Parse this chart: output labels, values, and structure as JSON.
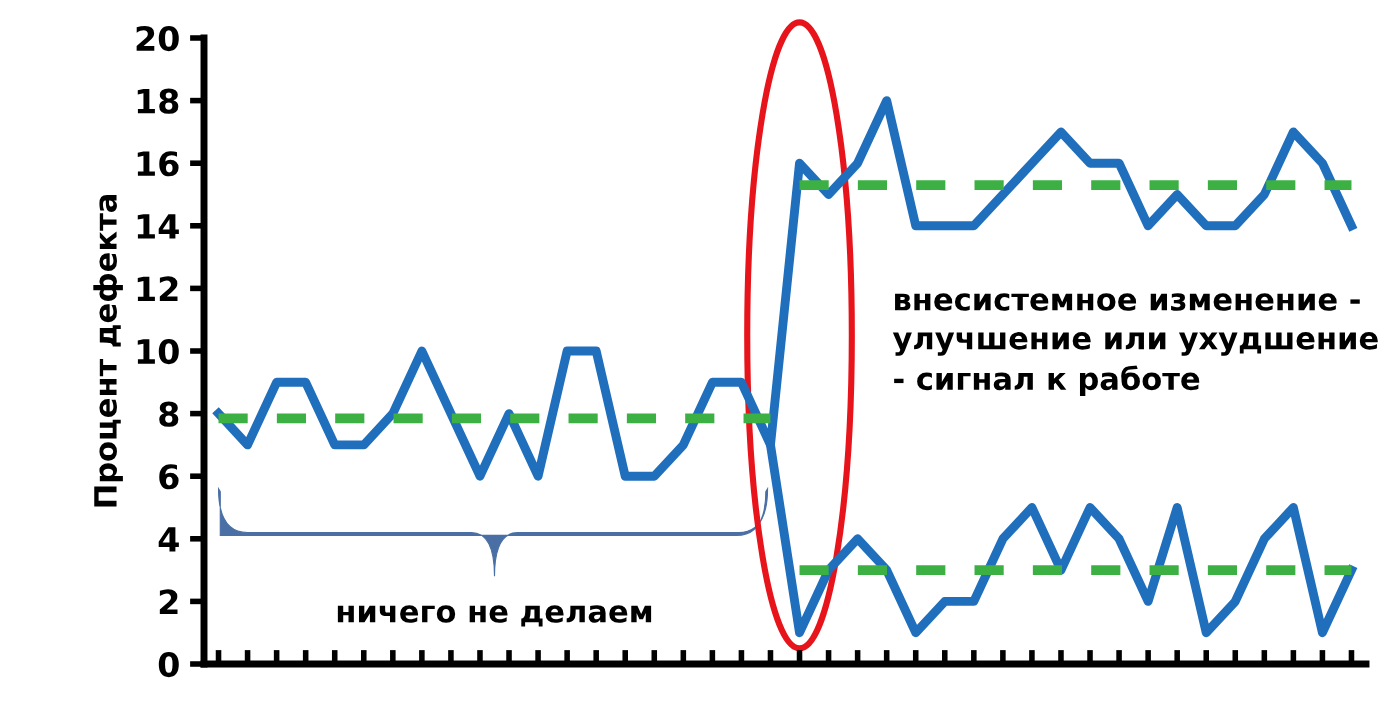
{
  "chart_data": {
    "type": "line",
    "ylabel": "Процент дефекта",
    "categories": [
      null,
      null,
      null,
      null,
      null,
      null,
      null,
      null,
      null,
      null,
      null,
      null,
      null,
      null,
      null,
      null,
      null,
      null,
      null,
      null,
      null,
      null,
      null,
      null,
      null,
      null,
      null,
      null,
      null,
      null,
      null,
      null,
      null,
      null,
      null,
      null,
      null,
      null,
      null,
      null
    ],
    "series": [
      {
        "color": "#1f6fbd",
        "line_style": "solid",
        "values": [
          8,
          7,
          9,
          9,
          7,
          7,
          8,
          10,
          8,
          6,
          8,
          6,
          10,
          10,
          6,
          6,
          7,
          9,
          9,
          7,
          16,
          15,
          16,
          18,
          14,
          14,
          14,
          15,
          16,
          17,
          16,
          16,
          14,
          15,
          14,
          14,
          15,
          17,
          16,
          14
        ]
      },
      {
        "color": "#1f6fbd",
        "line_style": "solid",
        "values": [
          null,
          null,
          null,
          null,
          null,
          null,
          null,
          null,
          null,
          null,
          null,
          null,
          null,
          null,
          null,
          null,
          null,
          null,
          null,
          7,
          1,
          3,
          4,
          3,
          1,
          2,
          2,
          4,
          5,
          3,
          5,
          4,
          2,
          5,
          1,
          2,
          4,
          5,
          1,
          3
        ]
      },
      {
        "color": "#3cb043",
        "line_style": "dashed",
        "values": [
          7.85,
          7.85,
          7.85,
          7.85,
          7.85,
          7.85,
          7.85,
          7.85,
          7.85,
          7.85,
          7.85,
          7.85,
          7.85,
          7.85,
          7.85,
          7.85,
          7.85,
          7.85,
          7.85,
          7.85,
          null,
          null,
          null,
          null,
          null,
          null,
          null,
          null,
          null,
          null,
          null,
          null,
          null,
          null,
          null,
          null,
          null,
          null,
          null,
          null
        ]
      },
      {
        "color": "#3cb043",
        "line_style": "dashed",
        "values": [
          null,
          null,
          null,
          null,
          null,
          null,
          null,
          null,
          null,
          null,
          null,
          null,
          null,
          null,
          null,
          null,
          null,
          null,
          null,
          null,
          15.3,
          15.3,
          15.3,
          15.3,
          15.3,
          15.3,
          15.3,
          15.3,
          15.3,
          15.3,
          15.3,
          15.3,
          15.3,
          15.3,
          15.3,
          15.3,
          15.3,
          15.3,
          15.3,
          15.3
        ]
      },
      {
        "color": "#3cb043",
        "line_style": "dashed",
        "values": [
          null,
          null,
          null,
          null,
          null,
          null,
          null,
          null,
          null,
          null,
          null,
          null,
          null,
          null,
          null,
          null,
          null,
          null,
          null,
          null,
          3,
          3,
          3,
          3,
          3,
          3,
          3,
          3,
          3,
          3,
          3,
          3,
          3,
          3,
          3,
          3,
          3,
          3,
          3,
          3
        ]
      }
    ],
    "ylim": [
      0,
      20
    ],
    "yticks": [
      0,
      2,
      4,
      6,
      8,
      10,
      12,
      14,
      16,
      18,
      20
    ],
    "grid": false,
    "legend": false,
    "marker": "none",
    "annotations": [
      {
        "text": "ничего не делаем"
      },
      {
        "text": "внесистемное изменение -\nулучшение или ухудшение\n- сигнал к работе"
      }
    ]
  }
}
